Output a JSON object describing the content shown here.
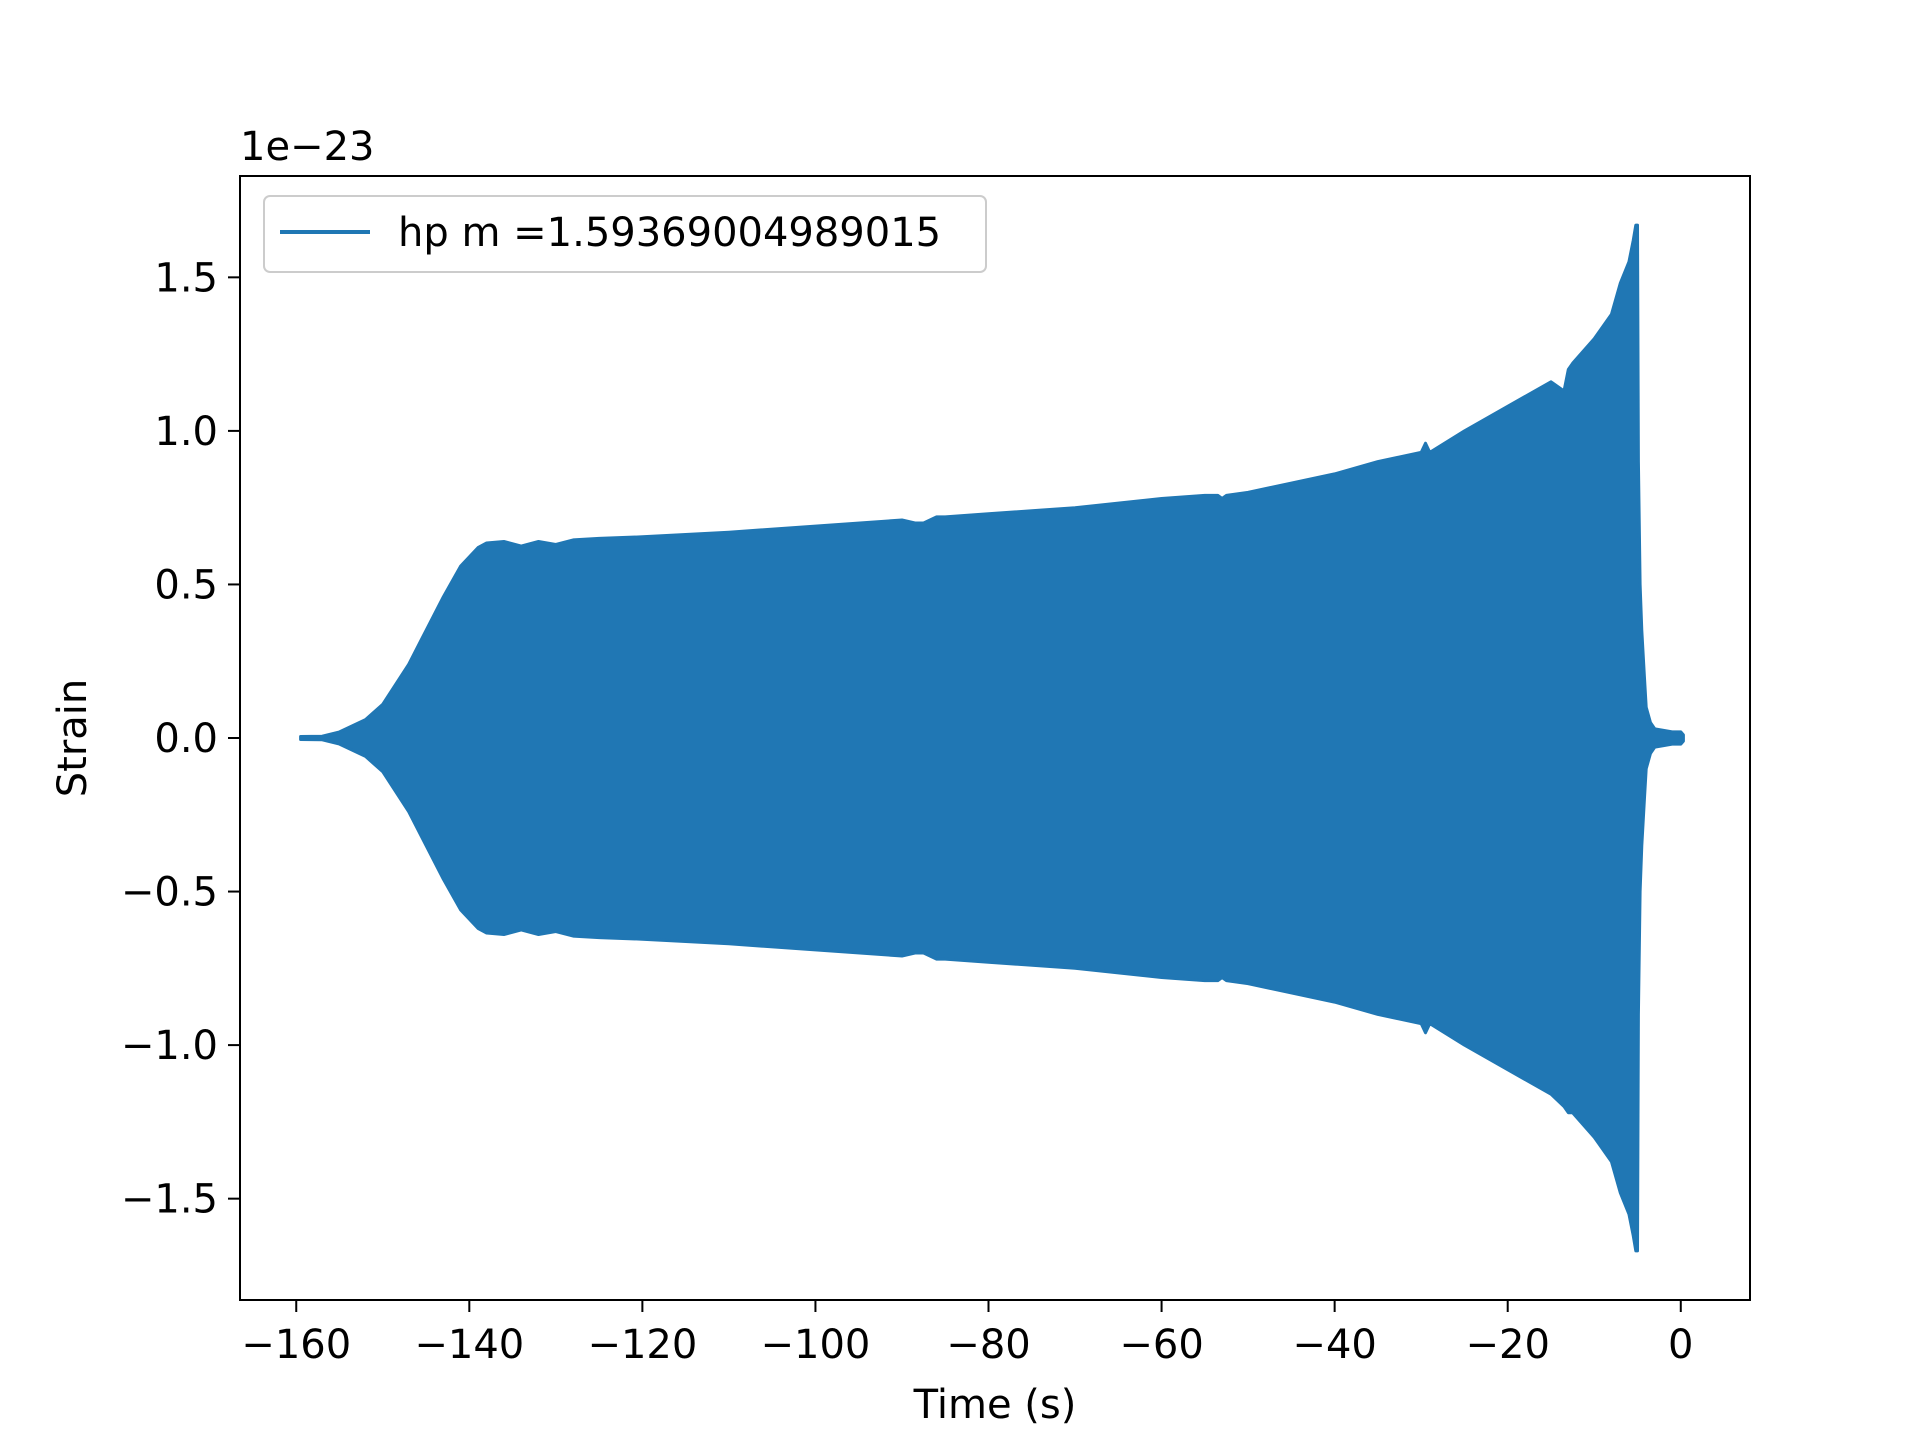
{
  "chart_data": {
    "type": "line",
    "title": "",
    "xlabel": "Time (s)",
    "ylabel": "Strain",
    "y_offset_label": "1e−23",
    "xlim": [
      -166.5,
      8
    ],
    "ylim": [
      -1.83,
      1.83
    ],
    "y_scale": 1e-23,
    "x_ticks": [
      -160,
      -140,
      -120,
      -100,
      -80,
      -60,
      -40,
      -20,
      0
    ],
    "x_tick_labels": [
      "−160",
      "−140",
      "−120",
      "−100",
      "−80",
      "−60",
      "−40",
      "−20",
      "0"
    ],
    "y_ticks": [
      -1.5,
      -1.0,
      -0.5,
      0.0,
      0.5,
      1.0,
      1.5
    ],
    "y_tick_labels": [
      "−1.5",
      "−1.0",
      "−0.5",
      "0.0",
      "0.5",
      "1.0",
      "1.5"
    ],
    "grid": false,
    "legend_position": "upper-left",
    "colors": {
      "series": "#2077b4",
      "axes": "#000000",
      "legend_border": "#cccccc"
    },
    "series": [
      {
        "name": "hp m =1.59369004989015",
        "envelope_x": [
          -159.5,
          -157,
          -155,
          -152,
          -150,
          -147,
          -145,
          -143,
          -141,
          -139,
          -138,
          -136,
          -134,
          -132,
          -130,
          -128,
          -125,
          -120,
          -110,
          -100,
          -90,
          -88.5,
          -87.5,
          -86,
          -85,
          -80,
          -70,
          -60,
          -55,
          -53.5,
          -53,
          -52.5,
          -50,
          -45,
          -40,
          -35,
          -30,
          -29.5,
          -29,
          -25,
          -20,
          -15,
          -13.5,
          -13,
          -12.5,
          -10,
          -8,
          -7,
          -6,
          -5.5,
          -5.2,
          -5.0,
          -4.9,
          -4.7,
          -4.5,
          -4.2,
          -4,
          -3.5,
          -3,
          -2,
          -1,
          0,
          0.3
        ],
        "envelope_upper": [
          0.005,
          0.006,
          0.02,
          0.06,
          0.11,
          0.24,
          0.35,
          0.46,
          0.56,
          0.62,
          0.635,
          0.64,
          0.625,
          0.64,
          0.63,
          0.645,
          0.65,
          0.655,
          0.67,
          0.69,
          0.71,
          0.7,
          0.7,
          0.72,
          0.72,
          0.73,
          0.75,
          0.78,
          0.79,
          0.79,
          0.78,
          0.79,
          0.8,
          0.83,
          0.86,
          0.9,
          0.93,
          0.96,
          0.93,
          1.0,
          1.08,
          1.16,
          1.13,
          1.2,
          1.22,
          1.3,
          1.38,
          1.48,
          1.55,
          1.62,
          1.67,
          1.67,
          0.9,
          0.5,
          0.35,
          0.2,
          0.1,
          0.05,
          0.03,
          0.025,
          0.02,
          0.02,
          0.01
        ],
        "envelope_lower": [
          -0.005,
          -0.006,
          -0.02,
          -0.06,
          -0.11,
          -0.24,
          -0.35,
          -0.46,
          -0.56,
          -0.62,
          -0.635,
          -0.64,
          -0.625,
          -0.64,
          -0.63,
          -0.645,
          -0.65,
          -0.655,
          -0.67,
          -0.69,
          -0.71,
          -0.7,
          -0.7,
          -0.72,
          -0.72,
          -0.73,
          -0.75,
          -0.78,
          -0.79,
          -0.79,
          -0.78,
          -0.79,
          -0.8,
          -0.83,
          -0.86,
          -0.9,
          -0.93,
          -0.96,
          -0.93,
          -1.0,
          -1.08,
          -1.16,
          -1.2,
          -1.22,
          -1.22,
          -1.3,
          -1.38,
          -1.48,
          -1.55,
          -1.62,
          -1.67,
          -1.67,
          -0.9,
          -0.5,
          -0.35,
          -0.2,
          -0.1,
          -0.05,
          -0.03,
          -0.025,
          -0.02,
          -0.02,
          -0.01
        ]
      }
    ]
  }
}
